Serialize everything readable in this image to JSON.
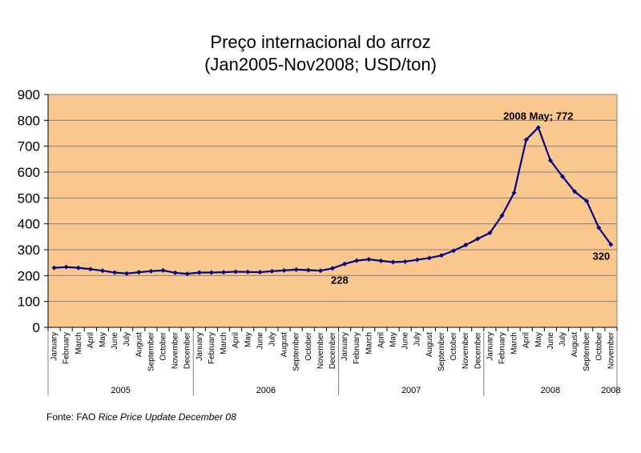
{
  "title_line1": "Preço internacional do arroz",
  "title_line2": "(Jan2005-Nov2008; USD/ton)",
  "source_prefix": "Fonte: FAO ",
  "source_italic": "Rice Price Update December 08",
  "colors": {
    "plot_bg": "#FAC78E",
    "line": "#000080",
    "grid": "#808080"
  },
  "chart_data": {
    "type": "line",
    "title": "Preço internacional do arroz (Jan2005-Nov2008; USD/ton)",
    "xlabel": "",
    "ylabel": "",
    "ylim": [
      0,
      900
    ],
    "yticks": [
      0,
      100,
      200,
      300,
      400,
      500,
      600,
      700,
      800,
      900
    ],
    "grid": true,
    "months": [
      "January",
      "February",
      "March",
      "April",
      "May",
      "June",
      "July",
      "August",
      "September",
      "October",
      "November",
      "December"
    ],
    "years": [
      "2005",
      "2006",
      "2007",
      "2008"
    ],
    "x": [
      "Jan 2005",
      "Feb 2005",
      "Mar 2005",
      "Apr 2005",
      "May 2005",
      "Jun 2005",
      "Jul 2005",
      "Aug 2005",
      "Sep 2005",
      "Oct 2005",
      "Nov 2005",
      "Dec 2005",
      "Jan 2006",
      "Feb 2006",
      "Mar 2006",
      "Apr 2006",
      "May 2006",
      "Jun 2006",
      "Jul 2006",
      "Aug 2006",
      "Sep 2006",
      "Oct 2006",
      "Nov 2006",
      "Dec 2006",
      "Jan 2007",
      "Feb 2007",
      "Mar 2007",
      "Apr 2007",
      "May 2007",
      "Jun 2007",
      "Jul 2007",
      "Aug 2007",
      "Sep 2007",
      "Oct 2007",
      "Nov 2007",
      "Dec 2007",
      "Jan 2008",
      "Feb 2008",
      "Mar 2008",
      "Apr 2008",
      "May 2008",
      "Jun 2008",
      "Jul 2008",
      "Aug 2008",
      "Sep 2008",
      "Oct 2008",
      "Nov 2008"
    ],
    "series": [
      {
        "values": [
          230,
          233,
          230,
          225,
          219,
          212,
          208,
          213,
          217,
          220,
          211,
          207,
          212,
          212,
          213,
          215,
          214,
          213,
          217,
          220,
          223,
          221,
          219,
          228,
          245,
          258,
          263,
          257,
          252,
          254,
          261,
          268,
          278,
          296,
          318,
          342,
          365,
          432,
          520,
          725,
          772,
          645,
          583,
          525,
          488,
          385,
          320
        ]
      }
    ],
    "annotations": [
      {
        "text": "2008 May; 772",
        "x": "May 2008",
        "y": 772
      },
      {
        "text": "228",
        "x": "Dec 2006",
        "y": 228
      },
      {
        "text": "320",
        "x": "Nov 2008",
        "y": 320
      }
    ]
  }
}
